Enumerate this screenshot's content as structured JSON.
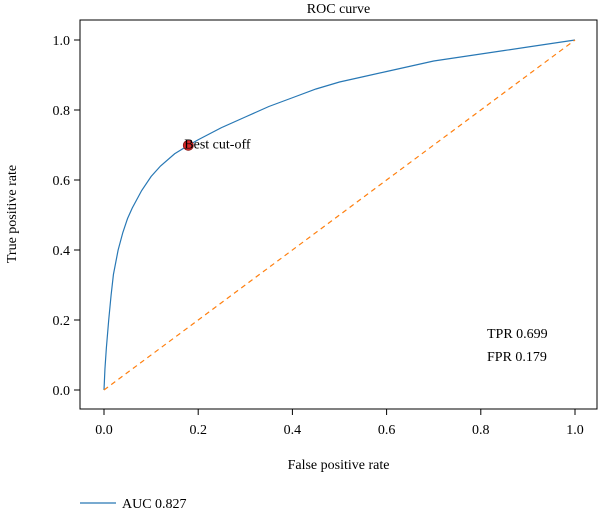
{
  "chart_data": {
    "type": "line",
    "title": "ROC curve",
    "xlabel": "False positive rate",
    "ylabel": "True positive rate",
    "xlim": [
      0.0,
      1.0
    ],
    "ylim": [
      0.0,
      1.0
    ],
    "xticks": [
      "0.0",
      "0.2",
      "0.4",
      "0.6",
      "0.8",
      "1.0"
    ],
    "yticks": [
      "0.0",
      "0.2",
      "0.4",
      "0.6",
      "0.8",
      "1.0"
    ],
    "grid": false,
    "legend_position": "bottom-left",
    "series": [
      {
        "name": "AUC 0.827",
        "color": "#2878b5",
        "style": "solid",
        "x": [
          0.0,
          0.002,
          0.005,
          0.01,
          0.015,
          0.02,
          0.03,
          0.04,
          0.05,
          0.06,
          0.08,
          0.1,
          0.12,
          0.15,
          0.179,
          0.2,
          0.25,
          0.3,
          0.35,
          0.4,
          0.45,
          0.5,
          0.55,
          0.6,
          0.65,
          0.7,
          0.75,
          0.8,
          0.85,
          0.9,
          0.95,
          1.0
        ],
        "y": [
          0.0,
          0.06,
          0.12,
          0.2,
          0.27,
          0.33,
          0.4,
          0.45,
          0.49,
          0.52,
          0.57,
          0.61,
          0.64,
          0.675,
          0.699,
          0.715,
          0.75,
          0.78,
          0.81,
          0.835,
          0.86,
          0.88,
          0.895,
          0.91,
          0.925,
          0.94,
          0.95,
          0.96,
          0.97,
          0.98,
          0.99,
          1.0
        ]
      },
      {
        "name": "",
        "color": "#ff7f0e",
        "style": "dashed",
        "x": [
          0.0,
          1.0
        ],
        "y": [
          0.0,
          1.0
        ]
      }
    ],
    "points": [
      {
        "label": "Best cut-off",
        "x": 0.179,
        "y": 0.699,
        "color": "#d62728"
      }
    ],
    "annotations": [
      {
        "text": "TPR 0.699"
      },
      {
        "text": "FPR 0.179"
      }
    ]
  }
}
